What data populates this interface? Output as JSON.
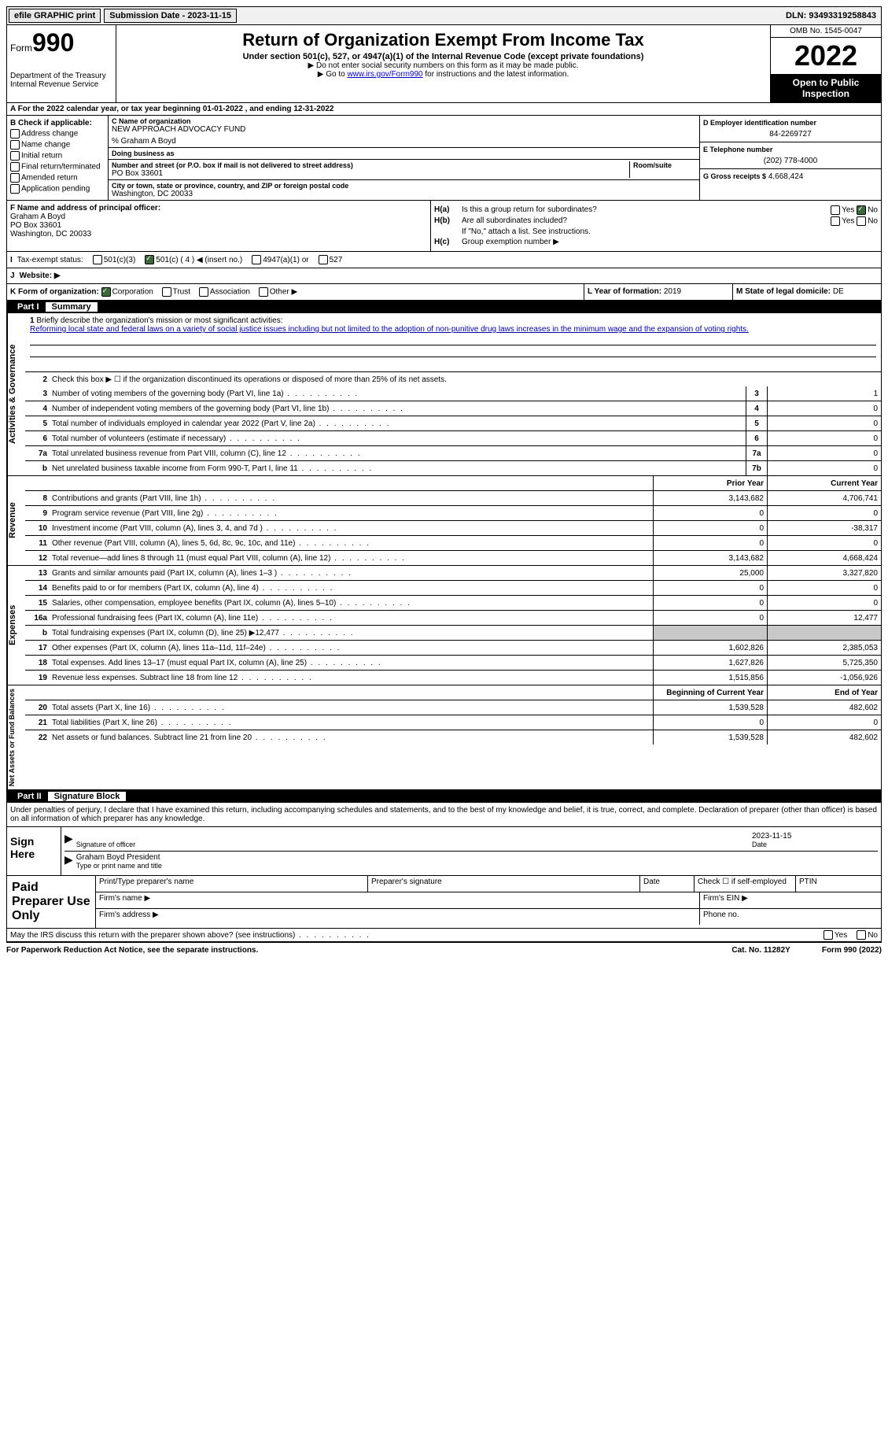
{
  "topbar": {
    "efile": "efile GRAPHIC print",
    "submission": "Submission Date - 2023-11-15",
    "dln": "DLN: 93493319258843"
  },
  "header": {
    "form_word": "Form",
    "form_num": "990",
    "dept": "Department of the Treasury\nInternal Revenue Service",
    "title": "Return of Organization Exempt From Income Tax",
    "sub": "Under section 501(c), 527, or 4947(a)(1) of the Internal Revenue Code (except private foundations)",
    "note1": "▶ Do not enter social security numbers on this form as it may be made public.",
    "note2_pre": "▶ Go to ",
    "note2_link": "www.irs.gov/Form990",
    "note2_post": " for instructions and the latest information.",
    "omb": "OMB No. 1545-0047",
    "year": "2022",
    "open": "Open to Public Inspection"
  },
  "section_a": "A  For the 2022 calendar year, or tax year beginning 01-01-2022    , and ending 12-31-2022",
  "box_b": {
    "title": "B Check if applicable:",
    "items": [
      "Address change",
      "Name change",
      "Initial return",
      "Final return/terminated",
      "Amended return",
      "Application pending"
    ]
  },
  "box_c": {
    "name_lbl": "C Name of organization",
    "name": "NEW APPROACH ADVOCACY FUND",
    "care_of": "% Graham A Boyd",
    "dba_lbl": "Doing business as",
    "addr_lbl": "Number and street (or P.O. box if mail is not delivered to street address)",
    "room_lbl": "Room/suite",
    "addr": "PO Box 33601",
    "city_lbl": "City or town, state or province, country, and ZIP or foreign postal code",
    "city": "Washington, DC  20033"
  },
  "box_d": {
    "ein_lbl": "D Employer identification number",
    "ein": "84-2269727",
    "tel_lbl": "E Telephone number",
    "tel": "(202) 778-4000",
    "gross_lbl": "G Gross receipts $",
    "gross": "4,668,424"
  },
  "box_f": {
    "lbl": "F Name and address of principal officer:",
    "name": "Graham A Boyd",
    "addr1": "PO Box 33601",
    "addr2": "Washington, DC  20033"
  },
  "box_h": {
    "ha_lbl": "H(a)",
    "ha_q": "Is this a group return for subordinates?",
    "hb_lbl": "H(b)",
    "hb_q": "Are all subordinates included?",
    "hb_note": "If \"No,\" attach a list. See instructions.",
    "hc_lbl": "H(c)",
    "hc_q": "Group exemption number ▶",
    "yes": "Yes",
    "no": "No"
  },
  "row_i": {
    "tag": "I",
    "lbl": "Tax-exempt status:",
    "o1": "501(c)(3)",
    "o2": "501(c) ( 4 ) ◀ (insert no.)",
    "o3": "4947(a)(1) or",
    "o4": "527"
  },
  "row_j": {
    "tag": "J",
    "lbl": "Website: ▶"
  },
  "row_k": {
    "lbl": "K Form of organization:",
    "o1": "Corporation",
    "o2": "Trust",
    "o3": "Association",
    "o4": "Other ▶",
    "l_lbl": "L Year of formation:",
    "l_val": "2019",
    "m_lbl": "M State of legal domicile:",
    "m_val": "DE"
  },
  "part1": {
    "num": "Part I",
    "title": "Summary"
  },
  "sidelabels": {
    "s1": "Activities & Governance",
    "s2": "Revenue",
    "s3": "Expenses",
    "s4": "Net Assets or Fund Balances"
  },
  "line1": {
    "num": "1",
    "desc": "Briefly describe the organization's mission or most significant activities:",
    "text": "Reforming local state and federal laws on a variety of social justice issues including but not limited to the adoption of non-punitive drug laws increases in the minimum wage and the expansion of voting rights."
  },
  "line2": {
    "num": "2",
    "desc": "Check this box ▶ ☐ if the organization discontinued its operations or disposed of more than 25% of its net assets."
  },
  "lines_gov": [
    {
      "num": "3",
      "desc": "Number of voting members of the governing body (Part VI, line 1a)",
      "box": "3",
      "val": "1"
    },
    {
      "num": "4",
      "desc": "Number of independent voting members of the governing body (Part VI, line 1b)",
      "box": "4",
      "val": "0"
    },
    {
      "num": "5",
      "desc": "Total number of individuals employed in calendar year 2022 (Part V, line 2a)",
      "box": "5",
      "val": "0"
    },
    {
      "num": "6",
      "desc": "Total number of volunteers (estimate if necessary)",
      "box": "6",
      "val": "0"
    },
    {
      "num": "7a",
      "desc": "Total unrelated business revenue from Part VIII, column (C), line 12",
      "box": "7a",
      "val": "0"
    },
    {
      "num": "b",
      "desc": "Net unrelated business taxable income from Form 990-T, Part I, line 11",
      "box": "7b",
      "val": "0"
    }
  ],
  "col_headers": {
    "prior": "Prior Year",
    "current": "Current Year",
    "boy": "Beginning of Current Year",
    "eoy": "End of Year"
  },
  "lines_rev": [
    {
      "num": "8",
      "desc": "Contributions and grants (Part VIII, line 1h)",
      "prior": "3,143,682",
      "cur": "4,706,741"
    },
    {
      "num": "9",
      "desc": "Program service revenue (Part VIII, line 2g)",
      "prior": "0",
      "cur": "0"
    },
    {
      "num": "10",
      "desc": "Investment income (Part VIII, column (A), lines 3, 4, and 7d )",
      "prior": "0",
      "cur": "-38,317"
    },
    {
      "num": "11",
      "desc": "Other revenue (Part VIII, column (A), lines 5, 6d, 8c, 9c, 10c, and 11e)",
      "prior": "0",
      "cur": "0"
    },
    {
      "num": "12",
      "desc": "Total revenue—add lines 8 through 11 (must equal Part VIII, column (A), line 12)",
      "prior": "3,143,682",
      "cur": "4,668,424"
    }
  ],
  "lines_exp": [
    {
      "num": "13",
      "desc": "Grants and similar amounts paid (Part IX, column (A), lines 1–3 )",
      "prior": "25,000",
      "cur": "3,327,820"
    },
    {
      "num": "14",
      "desc": "Benefits paid to or for members (Part IX, column (A), line 4)",
      "prior": "0",
      "cur": "0"
    },
    {
      "num": "15",
      "desc": "Salaries, other compensation, employee benefits (Part IX, column (A), lines 5–10)",
      "prior": "0",
      "cur": "0"
    },
    {
      "num": "16a",
      "desc": "Professional fundraising fees (Part IX, column (A), line 11e)",
      "prior": "0",
      "cur": "12,477"
    },
    {
      "num": "b",
      "desc": "Total fundraising expenses (Part IX, column (D), line 25) ▶12,477",
      "prior": "",
      "cur": "",
      "shaded": true
    },
    {
      "num": "17",
      "desc": "Other expenses (Part IX, column (A), lines 11a–11d, 11f–24e)",
      "prior": "1,602,826",
      "cur": "2,385,053"
    },
    {
      "num": "18",
      "desc": "Total expenses. Add lines 13–17 (must equal Part IX, column (A), line 25)",
      "prior": "1,627,826",
      "cur": "5,725,350"
    },
    {
      "num": "19",
      "desc": "Revenue less expenses. Subtract line 18 from line 12",
      "prior": "1,515,856",
      "cur": "-1,056,926"
    }
  ],
  "lines_net": [
    {
      "num": "20",
      "desc": "Total assets (Part X, line 16)",
      "prior": "1,539,528",
      "cur": "482,602"
    },
    {
      "num": "21",
      "desc": "Total liabilities (Part X, line 26)",
      "prior": "0",
      "cur": "0"
    },
    {
      "num": "22",
      "desc": "Net assets or fund balances. Subtract line 21 from line 20",
      "prior": "1,539,528",
      "cur": "482,602"
    }
  ],
  "part2": {
    "num": "Part II",
    "title": "Signature Block",
    "decl": "Under penalties of perjury, I declare that I have examined this return, including accompanying schedules and statements, and to the best of my knowledge and belief, it is true, correct, and complete. Declaration of preparer (other than officer) is based on all information of which preparer has any knowledge."
  },
  "sign": {
    "here": "Sign Here",
    "sig_lbl": "Signature of officer",
    "date_lbl": "Date",
    "date": "2023-11-15",
    "name": "Graham Boyd  President",
    "name_lbl": "Type or print name and title"
  },
  "prep": {
    "title": "Paid Preparer Use Only",
    "pname": "Print/Type preparer's name",
    "psig": "Preparer's signature",
    "pdate": "Date",
    "pself": "Check ☐ if self-employed",
    "ptin": "PTIN",
    "firm_name": "Firm's name   ▶",
    "firm_ein": "Firm's EIN ▶",
    "firm_addr": "Firm's address ▶",
    "phone": "Phone no."
  },
  "footer": {
    "discuss": "May the IRS discuss this return with the preparer shown above? (see instructions)",
    "yes": "Yes",
    "no": "No",
    "paperwork": "For Paperwork Reduction Act Notice, see the separate instructions.",
    "cat": "Cat. No. 11282Y",
    "form": "Form 990 (2022)"
  }
}
